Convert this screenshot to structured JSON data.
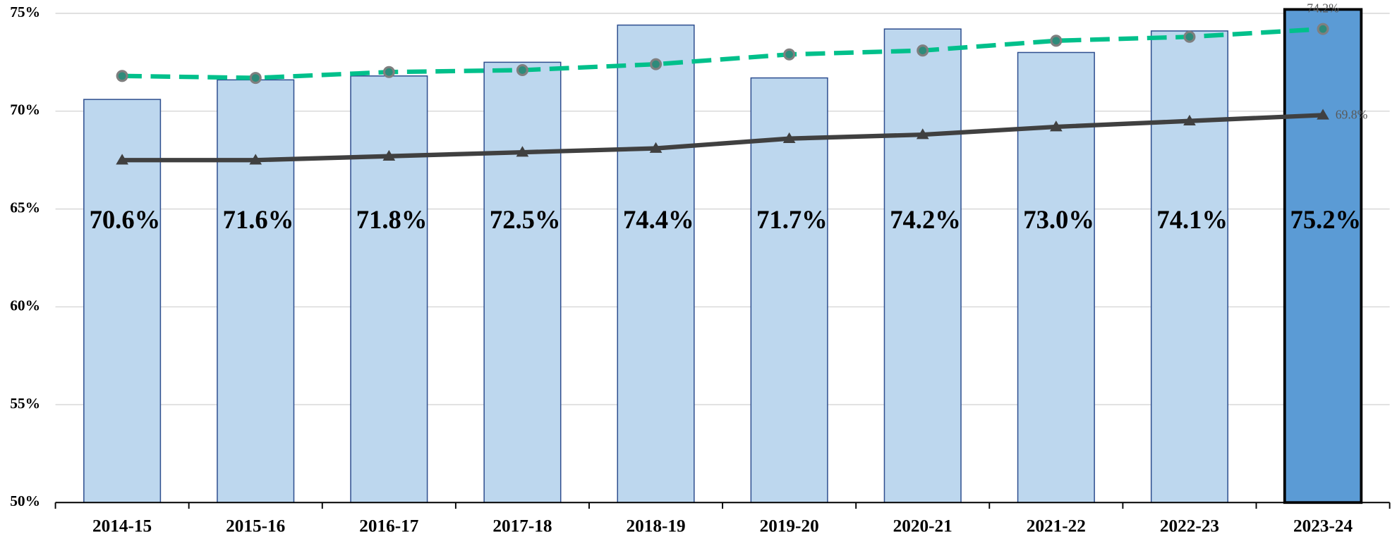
{
  "chart_data": {
    "type": "bar",
    "categories": [
      "2014-15",
      "2015-16",
      "2016-17",
      "2017-18",
      "2018-19",
      "2019-20",
      "2020-21",
      "2021-22",
      "2022-23",
      "2023-24"
    ],
    "values": [
      70.6,
      71.6,
      71.8,
      72.5,
      74.4,
      71.7,
      74.2,
      73.0,
      74.1,
      75.2
    ],
    "value_labels": [
      "70.6%",
      "71.6%",
      "71.8%",
      "72.5%",
      "74.4%",
      "71.7%",
      "74.2%",
      "73.0%",
      "74.1%",
      "75.2%"
    ],
    "color": "#bdd7ee",
    "highlight_color": "#5b9bd5",
    "lines": [
      {
        "color": "#00c08b",
        "dashed": true,
        "marker": "circle",
        "values": [
          71.8,
          71.7,
          72.0,
          72.1,
          72.4,
          72.9,
          73.1,
          73.6,
          73.8,
          74.2
        ],
        "value_labels": [
          null,
          null,
          null,
          null,
          null,
          null,
          null,
          null,
          null,
          "74.2%"
        ]
      },
      {
        "color": "#404040",
        "dashed": false,
        "marker": "triangle",
        "values": [
          67.5,
          67.5,
          67.7,
          67.9,
          68.1,
          68.6,
          68.8,
          69.2,
          69.5,
          69.8
        ],
        "value_labels": [
          null,
          null,
          null,
          null,
          null,
          null,
          null,
          null,
          null,
          "69.8%"
        ]
      }
    ],
    "ylim": [
      50,
      75
    ],
    "yticks": [
      {
        "value": 50,
        "label": "50%"
      },
      {
        "value": 55,
        "label": "55%"
      },
      {
        "value": 60,
        "label": "60%"
      },
      {
        "value": 65,
        "label": "65%"
      },
      {
        "value": 70,
        "label": "70%"
      },
      {
        "value": 75,
        "label": "75%"
      }
    ],
    "grid": true
  }
}
